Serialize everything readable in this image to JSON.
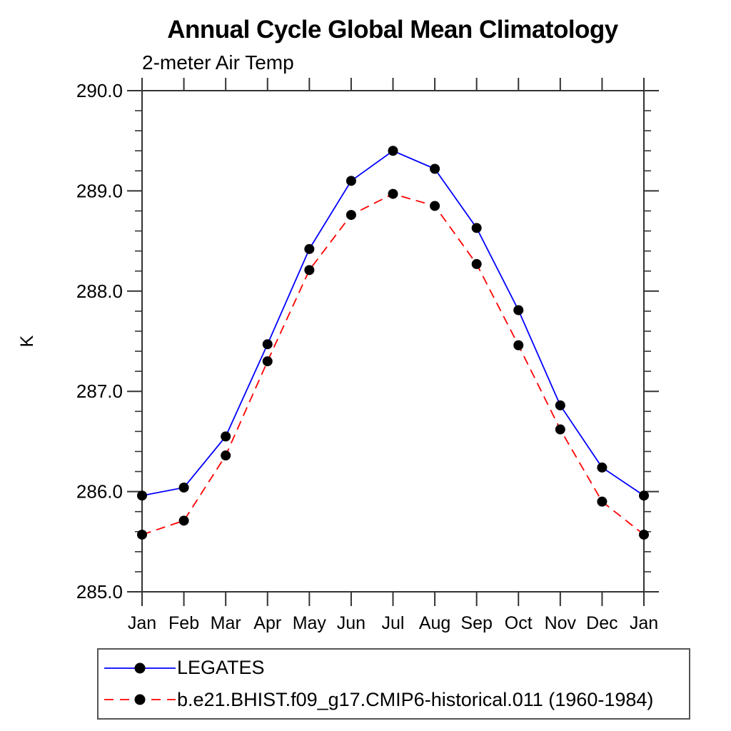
{
  "chart_data": {
    "type": "line",
    "title": "Annual Cycle Global Mean Climatology",
    "subtitle": "2-meter Air Temp",
    "ylabel": "K",
    "xlabel": "",
    "ylim": [
      285.0,
      290.0
    ],
    "y_major_ticks": [
      285.0,
      286.0,
      287.0,
      288.0,
      289.0,
      290.0
    ],
    "y_major_tick_labels": [
      "285.0",
      "286.0",
      "287.0",
      "288.0",
      "289.0",
      "290.0"
    ],
    "y_minor_tick_step": 0.2,
    "categories": [
      "Jan",
      "Feb",
      "Mar",
      "Apr",
      "May",
      "Jun",
      "Jul",
      "Aug",
      "Sep",
      "Oct",
      "Nov",
      "Dec",
      "Jan"
    ],
    "grid": false,
    "legend_position": "bottom-left-outside-box",
    "series": [
      {
        "name": "LEGATES",
        "color": "#0000ff",
        "line_style": "solid",
        "marker": "filled-circle",
        "marker_color": "#000000",
        "values": [
          285.96,
          286.04,
          286.55,
          287.47,
          288.42,
          289.1,
          289.4,
          289.22,
          288.63,
          287.81,
          286.86,
          286.24,
          285.96
        ]
      },
      {
        "name": "b.e21.BHIST.f09_g17.CMIP6-historical.011 (1960-1984)",
        "color": "#ff0000",
        "line_style": "dashed",
        "marker": "filled-circle",
        "marker_color": "#000000",
        "values": [
          285.57,
          285.71,
          286.36,
          287.3,
          288.21,
          288.76,
          288.97,
          288.85,
          288.27,
          287.46,
          286.62,
          285.9,
          285.57
        ]
      }
    ],
    "axis_color": "#333333",
    "text_color": "#000000",
    "background": "#ffffff"
  }
}
